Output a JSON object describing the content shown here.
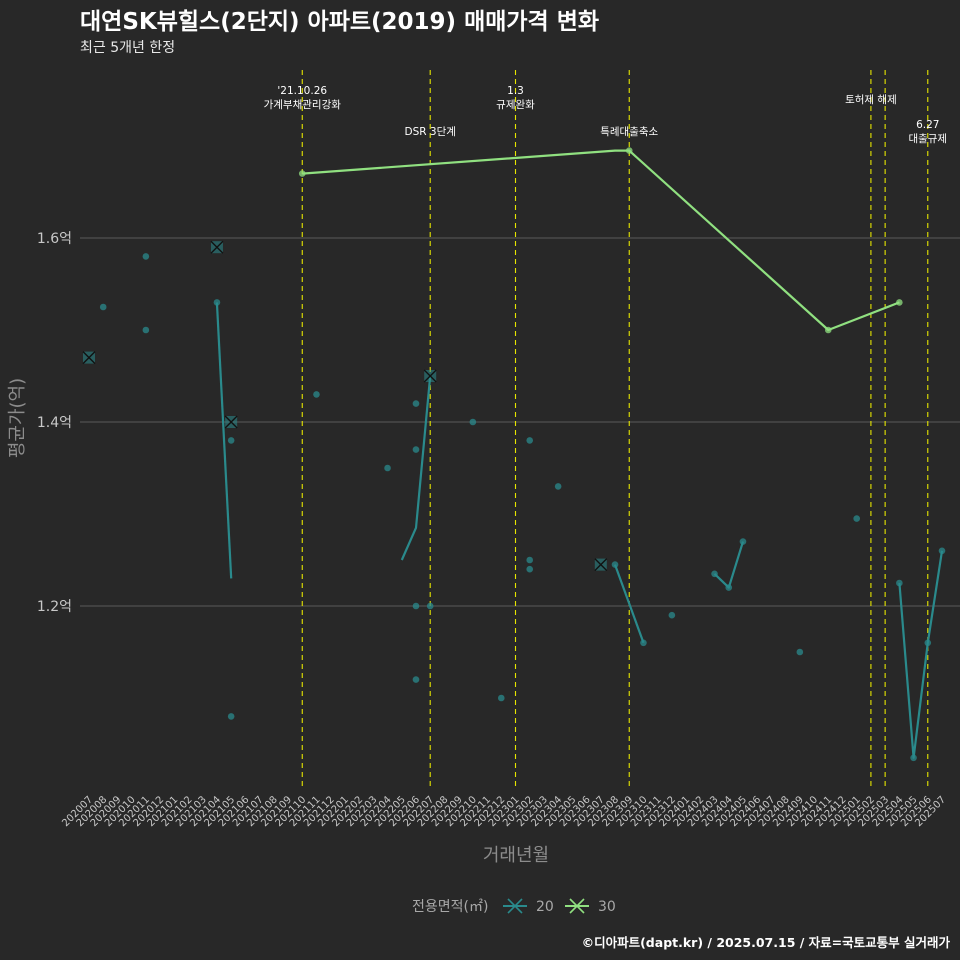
{
  "chart_data": {
    "type": "line",
    "title": "대연SK뷰힐스(2단지) 아파트(2019) 매매가격 변화",
    "subtitle": "최근 5개년 한정",
    "xlabel": "거래년월",
    "ylabel": "평균가(억)",
    "caption": "©디아파트(dapt.kr) / 2025.07.15 / 자료=국토교통부 실거래가",
    "legend": {
      "title": "전용면적(㎡)",
      "position": "bottom"
    },
    "ylim": [
      1.0,
      1.75
    ],
    "y_ticks": [
      1.2,
      1.4,
      1.6
    ],
    "y_tick_labels": [
      "1.2억",
      "1.4억",
      "1.6억"
    ],
    "grid": true,
    "categories": [
      "202007",
      "202008",
      "202009",
      "202010",
      "202011",
      "202012",
      "202101",
      "202102",
      "202103",
      "202104",
      "202105",
      "202106",
      "202107",
      "202108",
      "202109",
      "202110",
      "202111",
      "202112",
      "202201",
      "202202",
      "202203",
      "202204",
      "202205",
      "202206",
      "202207",
      "202208",
      "202209",
      "202210",
      "202211",
      "202212",
      "202301",
      "202302",
      "202303",
      "202304",
      "202305",
      "202306",
      "202307",
      "202308",
      "202309",
      "202310",
      "202311",
      "202312",
      "202401",
      "202402",
      "202403",
      "202404",
      "202405",
      "202406",
      "202407",
      "202408",
      "202409",
      "202410",
      "202411",
      "202412",
      "202501",
      "202502",
      "202503",
      "202504",
      "202505",
      "202506",
      "202507"
    ],
    "series": [
      {
        "name": "20",
        "color": "#2a8a8c",
        "line": [
          {
            "x": "202007",
            "y": 1.47
          },
          {
            "x": "202104",
            "y": 1.53
          },
          {
            "x": "202105",
            "y": 1.23
          },
          {
            "x": "202205",
            "y": 1.25
          },
          {
            "x": "202206",
            "y": 1.285
          },
          {
            "x": "202207",
            "y": 1.45
          },
          {
            "x": "202308",
            "y": 1.245
          },
          {
            "x": "202310",
            "y": 1.16
          },
          {
            "x": "202403",
            "y": 1.235
          },
          {
            "x": "202404",
            "y": 1.22
          },
          {
            "x": "202405",
            "y": 1.27
          },
          {
            "x": "202504",
            "y": 1.225
          },
          {
            "x": "202505",
            "y": 1.035
          },
          {
            "x": "202506",
            "y": 1.16
          },
          {
            "x": "202507",
            "y": 1.26
          }
        ],
        "line_segments": [
          [
            0,
            0
          ],
          [
            1,
            2
          ],
          [
            3,
            5
          ],
          [
            6,
            7
          ],
          [
            8,
            10
          ],
          [
            11,
            14
          ]
        ],
        "points": [
          {
            "x": "202008",
            "y": 1.525
          },
          {
            "x": "202011",
            "y": 1.58
          },
          {
            "x": "202011",
            "y": 1.5
          },
          {
            "x": "202104",
            "y": 1.53
          },
          {
            "x": "202105",
            "y": 1.38
          },
          {
            "x": "202105",
            "y": 1.08
          },
          {
            "x": "202111",
            "y": 1.43
          },
          {
            "x": "202204",
            "y": 1.35
          },
          {
            "x": "202206",
            "y": 1.42
          },
          {
            "x": "202206",
            "y": 1.2
          },
          {
            "x": "202206",
            "y": 1.12
          },
          {
            "x": "202206",
            "y": 1.37
          },
          {
            "x": "202207",
            "y": 1.2
          },
          {
            "x": "202210",
            "y": 1.4
          },
          {
            "x": "202212",
            "y": 1.1
          },
          {
            "x": "202302",
            "y": 1.38
          },
          {
            "x": "202302",
            "y": 1.25
          },
          {
            "x": "202302",
            "y": 1.24
          },
          {
            "x": "202304",
            "y": 1.33
          },
          {
            "x": "202308",
            "y": 1.245
          },
          {
            "x": "202310",
            "y": 1.16
          },
          {
            "x": "202312",
            "y": 1.19
          },
          {
            "x": "202403",
            "y": 1.235
          },
          {
            "x": "202404",
            "y": 1.22
          },
          {
            "x": "202405",
            "y": 1.27
          },
          {
            "x": "202409",
            "y": 1.15
          },
          {
            "x": "202501",
            "y": 1.295
          },
          {
            "x": "202504",
            "y": 1.225
          },
          {
            "x": "202505",
            "y": 1.035
          },
          {
            "x": "202506",
            "y": 1.16
          },
          {
            "x": "202507",
            "y": 1.26
          }
        ],
        "x_markers": [
          {
            "x": "202007",
            "y": 1.47
          },
          {
            "x": "202104",
            "y": 1.59
          },
          {
            "x": "202105",
            "y": 1.4
          },
          {
            "x": "202207",
            "y": 1.45
          },
          {
            "x": "202307",
            "y": 1.245
          }
        ]
      },
      {
        "name": "30",
        "color": "#90e080",
        "line": [
          {
            "x": "202110",
            "y": 1.67
          },
          {
            "x": "202308",
            "y": 1.695
          },
          {
            "x": "202309",
            "y": 1.695
          },
          {
            "x": "202411",
            "y": 1.5
          },
          {
            "x": "202504",
            "y": 1.53
          }
        ],
        "line_segments": [
          [
            0,
            4
          ]
        ],
        "points": [
          {
            "x": "202110",
            "y": 1.67
          },
          {
            "x": "202309",
            "y": 1.695
          },
          {
            "x": "202411",
            "y": 1.5
          },
          {
            "x": "202504",
            "y": 1.53
          }
        ],
        "x_markers": []
      }
    ],
    "annotations": [
      {
        "x": "202110",
        "lines": [
          "'21.10.26",
          "가계부채관리강화"
        ],
        "row": 0
      },
      {
        "x": "202207",
        "lines": [
          "DSR 3단계"
        ],
        "row": 2
      },
      {
        "x": "202301",
        "lines": [
          "1.3",
          "규제완화"
        ],
        "row": 0
      },
      {
        "x": "202309",
        "lines": [
          "특례대출축소"
        ],
        "row": 2
      },
      {
        "x": "202502",
        "lines": [
          "토허제 해제"
        ],
        "row": 1
      },
      {
        "x": "202503",
        "lines": [],
        "row": 1
      },
      {
        "x": "202506",
        "lines": [
          "6.27",
          "대출규제"
        ],
        "row": 3
      }
    ]
  }
}
